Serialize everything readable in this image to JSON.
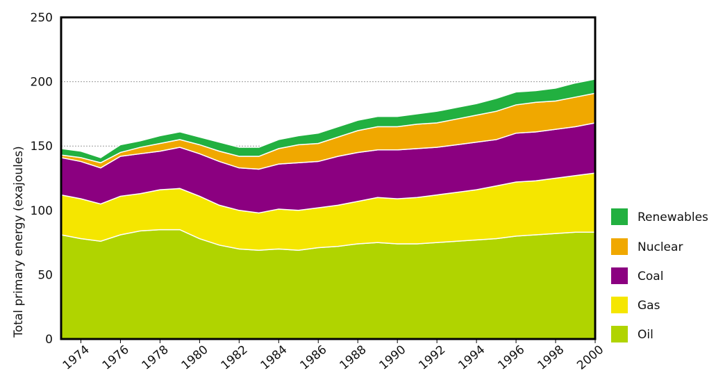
{
  "chart_data": {
    "type": "stacked-area",
    "y_label": "Total primary energy (exajoules)",
    "x": [
      1973,
      1974,
      1975,
      1976,
      1977,
      1978,
      1979,
      1980,
      1981,
      1982,
      1983,
      1984,
      1985,
      1986,
      1987,
      1988,
      1989,
      1990,
      1991,
      1992,
      1993,
      1994,
      1995,
      1996,
      1997,
      1998,
      1999,
      2000
    ],
    "series": [
      {
        "name": "Oil",
        "color": "#b0d400",
        "values": [
          81,
          78,
          76,
          81,
          84,
          85,
          85,
          78,
          73,
          70,
          69,
          70,
          69,
          71,
          72,
          74,
          75,
          74,
          74,
          75,
          76,
          77,
          78,
          80,
          81,
          82,
          83,
          83
        ]
      },
      {
        "name": "Gas",
        "color": "#f5e600",
        "values": [
          31,
          31,
          29,
          30,
          29,
          31,
          32,
          33,
          31,
          30,
          29,
          31,
          31,
          31,
          32,
          33,
          35,
          35,
          36,
          37,
          38,
          39,
          41,
          42,
          42,
          43,
          44,
          46
        ]
      },
      {
        "name": "Coal",
        "color": "#8b0080",
        "values": [
          29,
          29,
          28,
          31,
          31,
          30,
          32,
          33,
          34,
          33,
          34,
          35,
          37,
          36,
          38,
          38,
          37,
          38,
          38,
          37,
          37,
          37,
          36,
          38,
          38,
          38,
          38,
          39
        ]
      },
      {
        "name": "Nuclear",
        "color": "#f0a800",
        "values": [
          2,
          3,
          4,
          3,
          5,
          6,
          6,
          7,
          8,
          9,
          10,
          12,
          14,
          14,
          15,
          17,
          18,
          18,
          19,
          19,
          20,
          21,
          22,
          22,
          23,
          22,
          23,
          23
        ]
      },
      {
        "name": "Renewables",
        "color": "#22b040",
        "values": [
          5,
          5,
          4,
          6,
          5,
          6,
          6,
          6,
          7,
          7,
          7,
          7,
          7,
          8,
          8,
          8,
          8,
          8,
          8,
          9,
          9,
          9,
          10,
          10,
          9,
          10,
          11,
          11
        ]
      }
    ],
    "xlim": [
      1973,
      2000
    ],
    "xticks": [
      1974,
      1976,
      1978,
      1980,
      1982,
      1984,
      1986,
      1988,
      1990,
      1992,
      1994,
      1996,
      1998,
      2000
    ],
    "ylim": [
      0,
      250
    ],
    "yticks": [
      0,
      50,
      100,
      150,
      200,
      250
    ],
    "grid": true
  }
}
